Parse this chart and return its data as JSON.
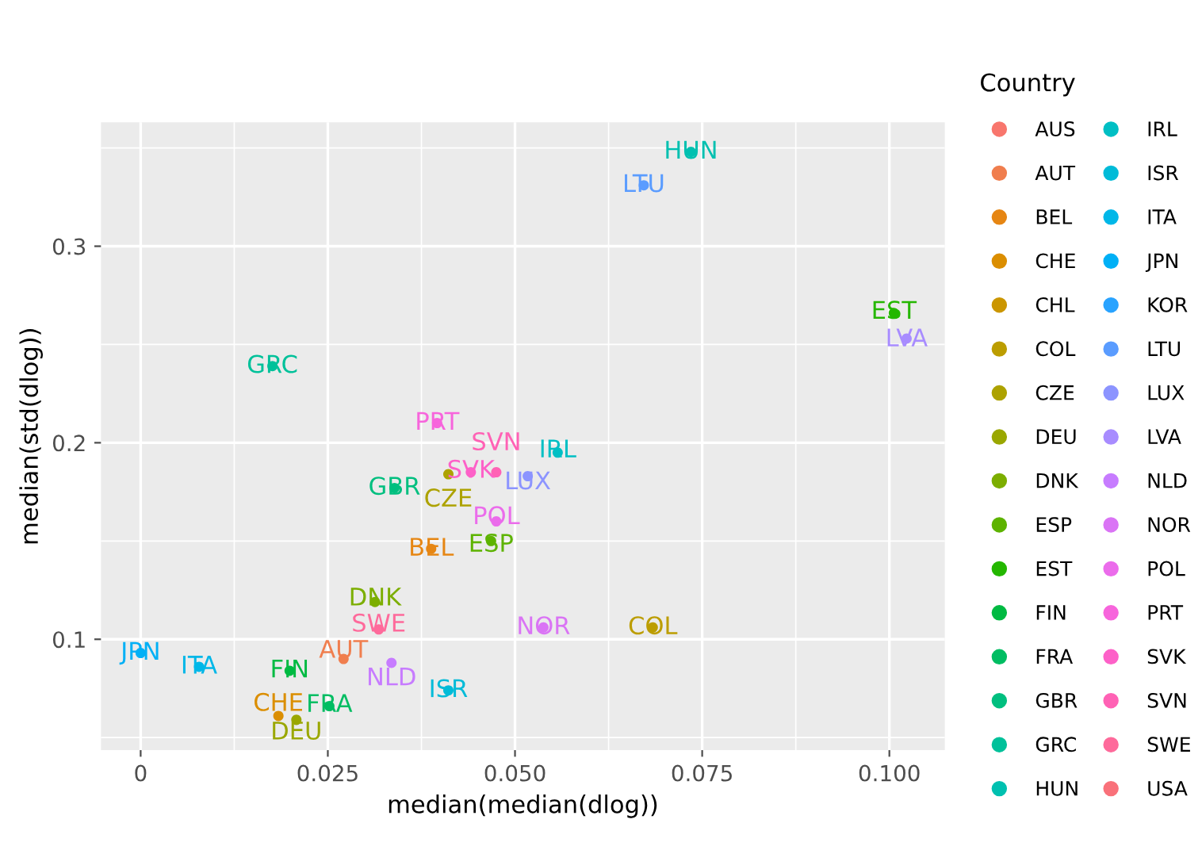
{
  "chart_data": {
    "type": "scatter",
    "xlabel": "median(median(dlog))",
    "ylabel": "median(std(dlog))",
    "legend_title": "Country",
    "xlim": [
      -0.0053,
      0.1074
    ],
    "ylim": [
      0.0436,
      0.363
    ],
    "xticks": [
      0,
      0.025,
      {
        "value": 0.05,
        "label": "0.050"
      },
      0.075,
      {
        "value": 0.1,
        "label": "0.100"
      }
    ],
    "yticks": [
      0.1,
      0.2,
      0.3
    ],
    "grid": true,
    "legend": "right",
    "marker": "circle",
    "series": [
      {
        "name": "AUS",
        "color": "#F8766D",
        "x": [
          null
        ],
        "values": [
          null
        ]
      },
      {
        "name": "AUT",
        "color": "#F07E4E",
        "x": [
          0.0271
        ],
        "values": [
          0.09
        ]
      },
      {
        "name": "BEL",
        "color": "#E68613",
        "x": [
          0.0388
        ],
        "values": [
          0.146
        ]
      },
      {
        "name": "CHE",
        "color": "#DB8E00",
        "x": [
          0.0184
        ],
        "values": [
          0.061
        ]
      },
      {
        "name": "CHL",
        "color": "#CB9600",
        "x": [
          null
        ],
        "values": [
          null
        ]
      },
      {
        "name": "COL",
        "color": "#BC9D00",
        "x": [
          0.0684
        ],
        "values": [
          0.106
        ]
      },
      {
        "name": "CZE",
        "color": "#ADA200",
        "x": [
          0.0411
        ],
        "values": [
          0.184
        ]
      },
      {
        "name": "DEU",
        "color": "#9AA700",
        "x": [
          0.0208
        ],
        "values": [
          0.059
        ]
      },
      {
        "name": "DNK",
        "color": "#7CAE00",
        "x": [
          0.0313
        ],
        "values": [
          0.119
        ]
      },
      {
        "name": "ESP",
        "color": "#5DB300",
        "x": [
          0.0468
        ],
        "values": [
          0.15
        ]
      },
      {
        "name": "EST",
        "color": "#24B700",
        "x": [
          0.1006
        ],
        "values": [
          0.266
        ]
      },
      {
        "name": "FIN",
        "color": "#00BA42",
        "x": [
          0.0199
        ],
        "values": [
          0.084
        ]
      },
      {
        "name": "FRA",
        "color": "#00BD62",
        "x": [
          0.0252
        ],
        "values": [
          0.066
        ]
      },
      {
        "name": "GBR",
        "color": "#00BF7F",
        "x": [
          0.0339
        ],
        "values": [
          0.177
        ]
      },
      {
        "name": "GRC",
        "color": "#00C19A",
        "x": [
          0.0176
        ],
        "values": [
          0.239
        ]
      },
      {
        "name": "HUN",
        "color": "#00C0B0",
        "x": [
          0.0735
        ],
        "values": [
          0.348
        ]
      },
      {
        "name": "IRL",
        "color": "#00BFC4",
        "x": [
          0.0557
        ],
        "values": [
          0.195
        ]
      },
      {
        "name": "ISR",
        "color": "#00BBD8",
        "x": [
          0.0411
        ],
        "values": [
          0.074
        ]
      },
      {
        "name": "ITA",
        "color": "#00B7E8",
        "x": [
          0.0078
        ],
        "values": [
          0.086
        ]
      },
      {
        "name": "JPN",
        "color": "#00B0F6",
        "x": [
          0.0
        ],
        "values": [
          0.093
        ]
      },
      {
        "name": "KOR",
        "color": "#29A3FF",
        "x": [
          null
        ],
        "values": [
          null
        ]
      },
      {
        "name": "LTU",
        "color": "#5A9CFF",
        "x": [
          0.0672
        ],
        "values": [
          0.331
        ]
      },
      {
        "name": "LUX",
        "color": "#8C94FF",
        "x": [
          0.0517
        ],
        "values": [
          0.183
        ]
      },
      {
        "name": "LVA",
        "color": "#A88CFF",
        "x": [
          0.1023
        ],
        "values": [
          0.253
        ]
      },
      {
        "name": "NLD",
        "color": "#C77CFF",
        "x": [
          0.0335
        ],
        "values": [
          0.088
        ]
      },
      {
        "name": "NOR",
        "color": "#DA74F5",
        "x": [
          0.0538
        ],
        "values": [
          0.106
        ]
      },
      {
        "name": "POL",
        "color": "#EB6CEB",
        "x": [
          0.0475
        ],
        "values": [
          0.16
        ]
      },
      {
        "name": "PRT",
        "color": "#F765DC",
        "x": [
          0.0396
        ],
        "values": [
          0.21
        ]
      },
      {
        "name": "SVK",
        "color": "#FD61C8",
        "x": [
          0.0441
        ],
        "values": [
          0.185
        ]
      },
      {
        "name": "SVN",
        "color": "#FF62B5",
        "x": [
          0.0475
        ],
        "values": [
          0.185
        ]
      },
      {
        "name": "SWE",
        "color": "#FE6A9B",
        "x": [
          0.0318
        ],
        "values": [
          0.105
        ]
      },
      {
        "name": "USA",
        "color": "#F9717A",
        "x": [
          null
        ],
        "values": [
          null
        ]
      }
    ]
  }
}
